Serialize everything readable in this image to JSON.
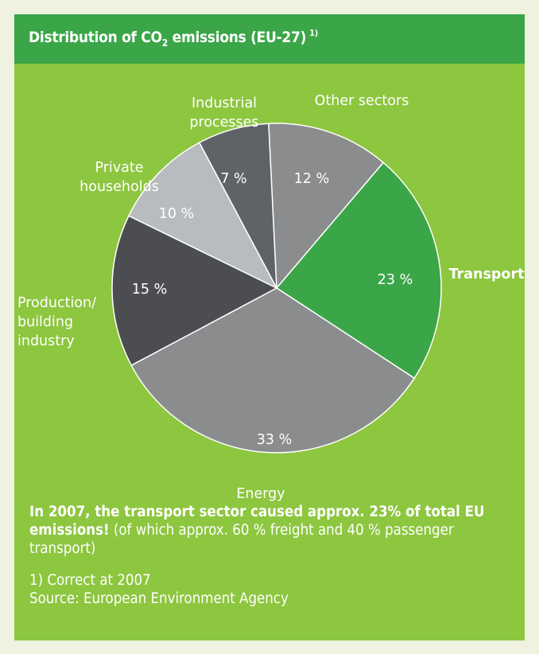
{
  "chart_data": {
    "type": "pie",
    "title_parts": [
      "Distribution of CO",
      "2",
      " emissions (EU-27)",
      "1)"
    ],
    "categories": [
      "Other sectors",
      "Transport",
      "Energy",
      "Production/\nbuilding\nindustry",
      "Private\nhouseholds",
      "Industrial\nprocesses"
    ],
    "values": [
      12,
      23,
      33,
      15,
      10,
      7
    ],
    "value_labels": [
      "12 %",
      "23 %",
      "33 %",
      "15 %",
      "10 %",
      "7 %"
    ],
    "colors": [
      "#8b8c8e",
      "#3aa648",
      "#8b8c8e",
      "#4b4d51",
      "#b8bcbe",
      "#5f6368"
    ],
    "highlight": "Transport",
    "note_bold": "In 2007, the transport sector caused approx. 23% of total EU emissions!",
    "note_text": " (of which approx. 60 % freight and 40 % passenger transport)",
    "footnote": "1) Correct at 2007",
    "source": "Source: European Environment Agency"
  }
}
